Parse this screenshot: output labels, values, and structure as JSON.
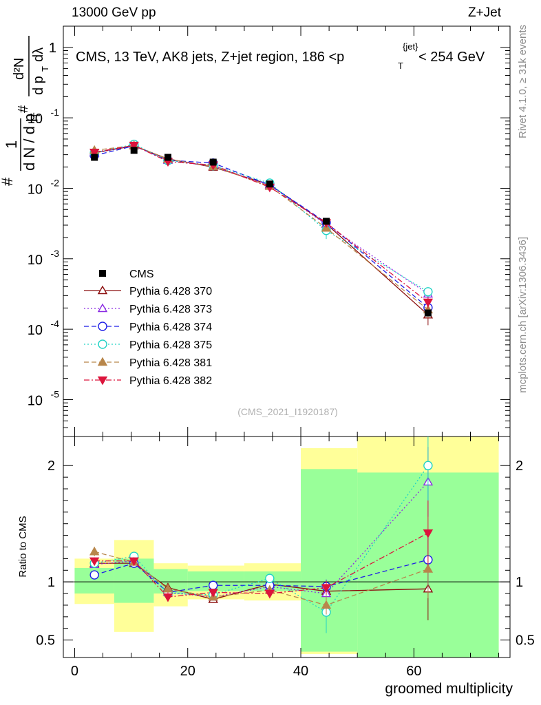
{
  "header": {
    "left_label": "13000 GeV pp",
    "right_label": "Z+Jet"
  },
  "side_labels": {
    "rivet": "Rivet 4.1.0, ≥ 31k events",
    "mcplots": "mcplots.cern.ch [arXiv:1306.3436]"
  },
  "chart_data": {
    "type": "line",
    "title": "CMS, 13 TeV, AK8 jets, Z+jet region, 186 <p_T^{jet}< 254 GeV",
    "title_parts": {
      "main": "CMS, 13 TeV, AK8 jets, Z+jet region, 186 <p",
      "sup": "{jet}",
      "sub": "T",
      "tail": "< 254 GeV"
    },
    "ylabel": "(1/dN/dp_T) d²N/dp_T dλ",
    "ylabel_parts": {
      "num": "1",
      "den": "d N / d p",
      "den_sub": "T",
      "hash": "#",
      "num2": "d²N",
      "den2": "d p",
      "den2_sub": "T",
      "den2_tail": "dλ"
    },
    "xlabel": "groomed multiplicity",
    "ratio_ylabel": "Ratio to CMS",
    "watermark": "(CMS_2021_I1920187)",
    "xlim": [
      -2,
      77
    ],
    "ylim_log": [
      3e-06,
      2
    ],
    "ratio_ylim": [
      0.35,
      2.25
    ],
    "x_ticks": [
      "0",
      "20",
      "40",
      "60"
    ],
    "x_tick_values": [
      0,
      20,
      40,
      60
    ],
    "y_ticks": [
      "1",
      "10^{-1}",
      "10^{-2}",
      "10^{-3}",
      "10^{-4}",
      "10^{-5}"
    ],
    "y_tick_exponents": [
      0,
      -1,
      -2,
      -3,
      -4,
      -5
    ],
    "ratio_ticks": [
      "0.5",
      "1",
      "2"
    ],
    "ratio_tick_values": [
      0.5,
      1,
      2
    ],
    "bin_edges": [
      0,
      7,
      14,
      20,
      30,
      40,
      50,
      75
    ],
    "x": [
      3.5,
      10.5,
      16.5,
      24.5,
      34.5,
      44.5,
      62.5
    ],
    "cms": {
      "name": "CMS",
      "values": [
        0.0275,
        0.0345,
        0.0275,
        0.0235,
        0.0115,
        0.0034,
        0.00017
      ]
    },
    "band_yellow": [
      [
        0.81,
        1.2
      ],
      [
        0.57,
        1.36
      ],
      [
        0.79,
        1.16
      ],
      [
        0.85,
        1.14
      ],
      [
        0.84,
        1.16
      ],
      [
        0.38,
        2.15
      ],
      [
        0.35,
        2.3
      ]
    ],
    "band_green": [
      [
        0.9,
        1.12
      ],
      [
        0.82,
        1.2
      ],
      [
        0.9,
        1.11
      ],
      [
        0.92,
        1.09
      ],
      [
        0.92,
        1.09
      ],
      [
        0.4,
        1.97
      ],
      [
        0.35,
        1.94
      ]
    ],
    "series": [
      {
        "name": "Pythia 6.428 370",
        "color": "#8b0d0d",
        "dash": "",
        "marker": "tri-up-open",
        "ratio": [
          1.16,
          1.16,
          0.95,
          0.85,
          0.98,
          0.92,
          0.94
        ],
        "ratio_err": [
          0.03,
          0.03,
          0.04,
          0.03,
          0.04,
          0.06,
          0.27
        ]
      },
      {
        "name": "Pythia 6.428 373",
        "color": "#8a2be2",
        "dash": "2,3",
        "marker": "tri-up-open",
        "ratio": [
          1.15,
          1.18,
          0.91,
          0.87,
          0.96,
          0.9,
          1.86
        ],
        "ratio_err": [
          0.03,
          0.03,
          0.04,
          0.03,
          0.04,
          0.06,
          0.3
        ]
      },
      {
        "name": "Pythia 6.428 374",
        "color": "#1e1ee6",
        "dash": "7,4",
        "marker": "circle-open",
        "ratio": [
          1.06,
          1.16,
          0.91,
          0.97,
          0.97,
          0.96,
          1.19
        ],
        "ratio_err": [
          0.03,
          0.03,
          0.04,
          0.03,
          0.04,
          0.06,
          0.25
        ]
      },
      {
        "name": "Pythia 6.428 375",
        "color": "#22d3c5",
        "dash": "2,3",
        "marker": "circle-open",
        "ratio": [
          1.16,
          1.22,
          0.9,
          0.89,
          1.03,
          0.74,
          2.0
        ],
        "ratio_err": [
          0.03,
          0.03,
          0.04,
          0.03,
          0.04,
          0.18,
          0.3
        ]
      },
      {
        "name": "Pythia 6.428 381",
        "color": "#b8864b",
        "dash": "7,4",
        "marker": "tri-up-filled",
        "ratio": [
          1.26,
          1.17,
          0.94,
          0.87,
          0.93,
          0.8,
          1.11
        ],
        "ratio_err": [
          0.04,
          0.03,
          0.04,
          0.03,
          0.04,
          0.08,
          0.25
        ]
      },
      {
        "name": "Pythia 6.428 382",
        "color": "#dc143c",
        "dash": "8,3,2,3",
        "marker": "tri-down-filled",
        "ratio": [
          1.18,
          1.18,
          0.87,
          0.91,
          0.9,
          0.95,
          1.42
        ],
        "ratio_err": [
          0.03,
          0.03,
          0.04,
          0.03,
          0.04,
          0.06,
          0.28
        ]
      }
    ]
  }
}
